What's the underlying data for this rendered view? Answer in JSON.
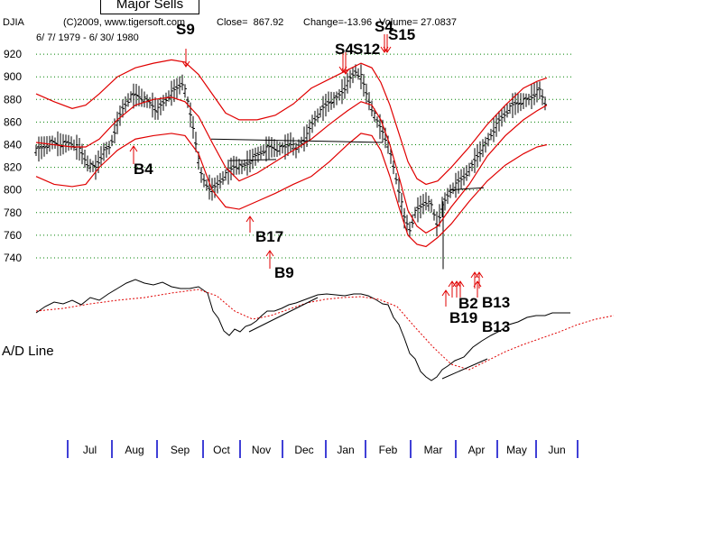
{
  "header": {
    "title_button": "Major Sells",
    "ticker": "DJIA",
    "copyright": "(C)2009, www.tigersoft.com",
    "close_label": "Close=  867.92",
    "change_label": "Change=-13.96",
    "volume_label": "Volume= 27.0837",
    "date_range": "6/ 7/ 1979 - 6/ 30/ 1980"
  },
  "indicator_label": "A/D Line",
  "colors": {
    "price": "#000000",
    "band": "#e00000",
    "grid": "#008000",
    "month_tick": "#0000c8",
    "signal": "#e00000"
  },
  "chart_data": {
    "type": "line",
    "title": "",
    "y_ticks": [
      920,
      900,
      880,
      860,
      840,
      820,
      800,
      780,
      760,
      740
    ],
    "ylim": [
      735,
      925
    ],
    "x_ticks": [
      "Jul",
      "Aug",
      "Sep",
      "Oct",
      "Nov",
      "Dec",
      "Jan",
      "Feb",
      "Mar",
      "Apr",
      "May",
      "Jun"
    ],
    "grid": true,
    "price_path": [
      [
        0,
        835
      ],
      [
        8,
        838
      ],
      [
        18,
        842
      ],
      [
        28,
        840
      ],
      [
        38,
        842
      ],
      [
        48,
        836
      ],
      [
        58,
        822
      ],
      [
        66,
        820
      ],
      [
        74,
        833
      ],
      [
        82,
        838
      ],
      [
        88,
        855
      ],
      [
        96,
        872
      ],
      [
        104,
        882
      ],
      [
        112,
        884
      ],
      [
        120,
        880
      ],
      [
        128,
        876
      ],
      [
        134,
        870
      ],
      [
        140,
        876
      ],
      [
        148,
        884
      ],
      [
        156,
        890
      ],
      [
        162,
        895
      ],
      [
        166,
        885
      ],
      [
        170,
        870
      ],
      [
        176,
        848
      ],
      [
        182,
        815
      ],
      [
        188,
        805
      ],
      [
        196,
        800
      ],
      [
        204,
        808
      ],
      [
        212,
        815
      ],
      [
        220,
        822
      ],
      [
        228,
        820
      ],
      [
        236,
        825
      ],
      [
        244,
        830
      ],
      [
        252,
        835
      ],
      [
        260,
        838
      ],
      [
        268,
        836
      ],
      [
        276,
        838
      ],
      [
        282,
        842
      ],
      [
        288,
        835
      ],
      [
        292,
        840
      ],
      [
        300,
        848
      ],
      [
        308,
        862
      ],
      [
        316,
        870
      ],
      [
        324,
        878
      ],
      [
        332,
        880
      ],
      [
        340,
        888
      ],
      [
        348,
        898
      ],
      [
        354,
        905
      ],
      [
        360,
        900
      ],
      [
        366,
        885
      ],
      [
        372,
        872
      ],
      [
        378,
        860
      ],
      [
        384,
        852
      ],
      [
        390,
        840
      ],
      [
        396,
        820
      ],
      [
        402,
        800
      ],
      [
        408,
        775
      ],
      [
        414,
        765
      ],
      [
        420,
        780
      ],
      [
        426,
        785
      ],
      [
        432,
        790
      ],
      [
        438,
        786
      ],
      [
        444,
        770
      ],
      [
        450,
        785
      ],
      [
        458,
        798
      ],
      [
        466,
        805
      ],
      [
        474,
        812
      ],
      [
        482,
        820
      ],
      [
        490,
        832
      ],
      [
        498,
        840
      ],
      [
        506,
        852
      ],
      [
        514,
        862
      ],
      [
        522,
        870
      ],
      [
        530,
        876
      ],
      [
        538,
        878
      ],
      [
        546,
        880
      ],
      [
        552,
        885
      ],
      [
        558,
        888
      ],
      [
        562,
        880
      ],
      [
        566,
        873
      ]
    ],
    "upper_band": [
      [
        0,
        885
      ],
      [
        20,
        878
      ],
      [
        40,
        872
      ],
      [
        55,
        875
      ],
      [
        70,
        885
      ],
      [
        90,
        900
      ],
      [
        110,
        908
      ],
      [
        130,
        912
      ],
      [
        150,
        915
      ],
      [
        165,
        913
      ],
      [
        180,
        902
      ],
      [
        195,
        885
      ],
      [
        210,
        868
      ],
      [
        225,
        862
      ],
      [
        245,
        862
      ],
      [
        265,
        866
      ],
      [
        285,
        876
      ],
      [
        305,
        890
      ],
      [
        325,
        898
      ],
      [
        345,
        906
      ],
      [
        360,
        912
      ],
      [
        372,
        908
      ],
      [
        382,
        895
      ],
      [
        392,
        875
      ],
      [
        402,
        850
      ],
      [
        412,
        825
      ],
      [
        422,
        810
      ],
      [
        432,
        805
      ],
      [
        445,
        808
      ],
      [
        460,
        820
      ],
      [
        480,
        838
      ],
      [
        500,
        858
      ],
      [
        520,
        875
      ],
      [
        540,
        890
      ],
      [
        555,
        896
      ],
      [
        566,
        899
      ]
    ],
    "middle_band": [
      [
        0,
        842
      ],
      [
        20,
        840
      ],
      [
        40,
        838
      ],
      [
        55,
        838
      ],
      [
        70,
        845
      ],
      [
        90,
        862
      ],
      [
        110,
        875
      ],
      [
        130,
        880
      ],
      [
        150,
        882
      ],
      [
        165,
        878
      ],
      [
        180,
        865
      ],
      [
        195,
        842
      ],
      [
        210,
        820
      ],
      [
        225,
        808
      ],
      [
        245,
        815
      ],
      [
        265,
        825
      ],
      [
        285,
        835
      ],
      [
        305,
        845
      ],
      [
        325,
        858
      ],
      [
        345,
        870
      ],
      [
        360,
        878
      ],
      [
        372,
        875
      ],
      [
        382,
        862
      ],
      [
        392,
        840
      ],
      [
        402,
        812
      ],
      [
        412,
        782
      ],
      [
        422,
        768
      ],
      [
        432,
        762
      ],
      [
        445,
        768
      ],
      [
        460,
        785
      ],
      [
        480,
        805
      ],
      [
        500,
        830
      ],
      [
        520,
        848
      ],
      [
        540,
        862
      ],
      [
        555,
        870
      ],
      [
        566,
        875
      ]
    ],
    "lower_band": [
      [
        0,
        812
      ],
      [
        20,
        805
      ],
      [
        40,
        803
      ],
      [
        55,
        805
      ],
      [
        70,
        820
      ],
      [
        90,
        835
      ],
      [
        110,
        845
      ],
      [
        130,
        848
      ],
      [
        150,
        850
      ],
      [
        165,
        848
      ],
      [
        180,
        832
      ],
      [
        195,
        800
      ],
      [
        210,
        785
      ],
      [
        225,
        783
      ],
      [
        245,
        790
      ],
      [
        265,
        797
      ],
      [
        285,
        805
      ],
      [
        305,
        812
      ],
      [
        325,
        825
      ],
      [
        345,
        840
      ],
      [
        360,
        850
      ],
      [
        372,
        848
      ],
      [
        382,
        835
      ],
      [
        392,
        812
      ],
      [
        402,
        785
      ],
      [
        412,
        760
      ],
      [
        422,
        752
      ],
      [
        432,
        750
      ],
      [
        445,
        758
      ],
      [
        460,
        770
      ],
      [
        480,
        790
      ],
      [
        500,
        808
      ],
      [
        520,
        822
      ],
      [
        540,
        832
      ],
      [
        555,
        838
      ],
      [
        566,
        840
      ]
    ],
    "signals": [
      {
        "label": "S9",
        "type": "sell",
        "t": 162
      },
      {
        "label": "B4",
        "type": "buy",
        "t": 106
      },
      {
        "label": "S4",
        "type": "sell",
        "t": 339
      },
      {
        "label": "S12",
        "type": "sell",
        "t": 359
      },
      {
        "label": "S4",
        "type": "sell",
        "t": 379
      },
      {
        "label": "S15",
        "type": "sell",
        "t": 394
      },
      {
        "label": "B17",
        "type": "buy",
        "t": 233
      },
      {
        "label": "B9",
        "type": "buy",
        "t": 255
      },
      {
        "label": "B19",
        "type": "buy",
        "t": 458
      },
      {
        "label": "B2",
        "type": "buy",
        "t": 469
      },
      {
        "label": "B13",
        "type": "buy",
        "t": 494
      },
      {
        "label": "B13",
        "type": "buy",
        "t": 494
      }
    ],
    "ad_line": [
      [
        0,
        347
      ],
      [
        10,
        340
      ],
      [
        20,
        335
      ],
      [
        30,
        337
      ],
      [
        40,
        333
      ],
      [
        50,
        338
      ],
      [
        60,
        330
      ],
      [
        70,
        333
      ],
      [
        80,
        326
      ],
      [
        90,
        320
      ],
      [
        100,
        314
      ],
      [
        110,
        310
      ],
      [
        120,
        314
      ],
      [
        130,
        316
      ],
      [
        140,
        313
      ],
      [
        150,
        318
      ],
      [
        160,
        320
      ],
      [
        170,
        320
      ],
      [
        180,
        318
      ],
      [
        190,
        325
      ],
      [
        196,
        345
      ],
      [
        202,
        353
      ],
      [
        208,
        367
      ],
      [
        214,
        372
      ],
      [
        220,
        365
      ],
      [
        226,
        368
      ],
      [
        232,
        362
      ],
      [
        238,
        360
      ],
      [
        244,
        356
      ],
      [
        250,
        350
      ],
      [
        256,
        345
      ],
      [
        264,
        345
      ],
      [
        272,
        342
      ],
      [
        280,
        338
      ],
      [
        288,
        336
      ],
      [
        296,
        333
      ],
      [
        304,
        330
      ],
      [
        312,
        327
      ],
      [
        322,
        326
      ],
      [
        332,
        327
      ],
      [
        342,
        328
      ],
      [
        352,
        326
      ],
      [
        360,
        326
      ],
      [
        368,
        328
      ],
      [
        376,
        332
      ],
      [
        384,
        337
      ],
      [
        390,
        338
      ],
      [
        396,
        352
      ],
      [
        402,
        360
      ],
      [
        408,
        375
      ],
      [
        414,
        392
      ],
      [
        420,
        398
      ],
      [
        426,
        412
      ],
      [
        432,
        418
      ],
      [
        438,
        422
      ],
      [
        444,
        418
      ],
      [
        450,
        410
      ],
      [
        456,
        406
      ],
      [
        464,
        400
      ],
      [
        474,
        396
      ],
      [
        484,
        385
      ],
      [
        494,
        378
      ],
      [
        504,
        372
      ],
      [
        514,
        367
      ],
      [
        524,
        360
      ],
      [
        534,
        357
      ],
      [
        544,
        352
      ],
      [
        554,
        350
      ],
      [
        564,
        350
      ],
      [
        572,
        347
      ],
      [
        582,
        347
      ],
      [
        592,
        347
      ]
    ],
    "ad_ma": [
      [
        0,
        345
      ],
      [
        30,
        342
      ],
      [
        60,
        337
      ],
      [
        90,
        333
      ],
      [
        120,
        330
      ],
      [
        150,
        325
      ],
      [
        180,
        321
      ],
      [
        200,
        328
      ],
      [
        220,
        345
      ],
      [
        240,
        354
      ],
      [
        260,
        350
      ],
      [
        280,
        343
      ],
      [
        300,
        336
      ],
      [
        320,
        332
      ],
      [
        340,
        330
      ],
      [
        360,
        329
      ],
      [
        380,
        332
      ],
      [
        400,
        340
      ],
      [
        420,
        363
      ],
      [
        440,
        385
      ],
      [
        460,
        404
      ],
      [
        480,
        410
      ],
      [
        500,
        400
      ],
      [
        520,
        390
      ],
      [
        540,
        382
      ],
      [
        560,
        375
      ],
      [
        580,
        368
      ],
      [
        600,
        360
      ],
      [
        620,
        354
      ],
      [
        640,
        350
      ]
    ]
  }
}
